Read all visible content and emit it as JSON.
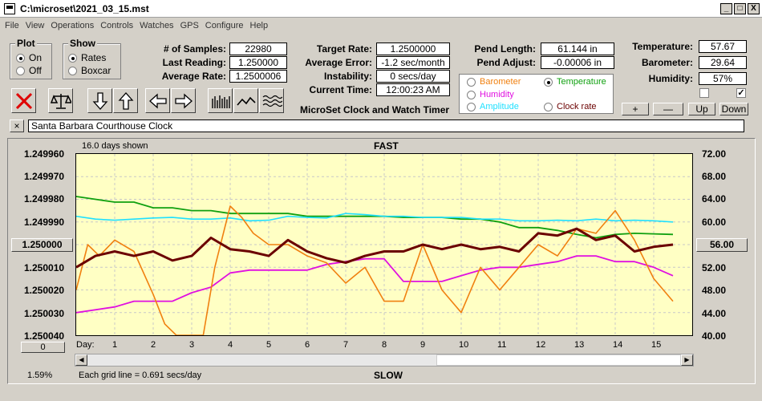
{
  "window": {
    "title": "C:\\microset\\2021_03_15.mst",
    "controls": [
      "_",
      "□",
      "X"
    ]
  },
  "menu": [
    "File",
    "View",
    "Operations",
    "Controls",
    "Watches",
    "GPS",
    "Configure",
    "Help"
  ],
  "plot_group": {
    "legend": "Plot",
    "on": "On",
    "off": "Off",
    "selected": "On"
  },
  "show_group": {
    "legend": "Show",
    "rates": "Rates",
    "boxcar": "Boxcar",
    "selected": "Rates"
  },
  "stats": {
    "samples_label": "# of Samples:",
    "samples": "22980",
    "last_label": "Last Reading:",
    "last": "1.250000",
    "avg_label": "Average Rate:",
    "avg": "1.2500006",
    "target_label": "Target Rate:",
    "target": "1.2500000",
    "err_label": "Average Error:",
    "err": "-1.2 sec/month",
    "inst_label": "Instability:",
    "inst": "0 secs/day",
    "time_label": "Current Time:",
    "time": "12:00:23 AM",
    "pendlen_label": "Pend Length:",
    "pendlen": "61.144 in",
    "pendadj_label": "Pend Adjust:",
    "pendadj": "-0.00006 in",
    "temp_label": "Temperature:",
    "temp": "57.67",
    "baro_label": "Barometer:",
    "baro": "29.64",
    "hum_label": "Humidity:",
    "hum": "57%"
  },
  "subtitle": "MicroSet Clock and Watch Timer",
  "sensor_radios": {
    "barometer": "Barometer",
    "temperature": "Temperature",
    "humidity": "Humidity",
    "amplitude": "Amplitude",
    "clockrate": "Clock rate",
    "selected": "Temperature"
  },
  "axis_buttons": {
    "plus": "+",
    "minus": "—",
    "up": "Up",
    "down": "Down"
  },
  "checks": {
    "left": false,
    "right": true,
    "mark": "✓"
  },
  "name_field": {
    "close": "×",
    "value": "Santa Barbara Courthouse Clock"
  },
  "graph": {
    "days_shown": "16.0 days shown",
    "fast": "FAST",
    "slow": "SLOW",
    "left_ticks": [
      "1.249960",
      "1.249970",
      "1.249980",
      "1.249990",
      "1.250000",
      "1.250010",
      "1.250020",
      "1.250030",
      "1.250040"
    ],
    "right_ticks": [
      "72.00",
      "68.00",
      "64.00",
      "60.00",
      "56.00",
      "52.00",
      "48.00",
      "44.00",
      "40.00"
    ],
    "center_left_button": "1.250000",
    "center_right_button": "56.00",
    "zero_button": "0",
    "day_label": "Day:",
    "days": [
      "1",
      "2",
      "3",
      "4",
      "5",
      "6",
      "7",
      "8",
      "9",
      "10",
      "11",
      "12",
      "13",
      "14",
      "15"
    ],
    "grid_note": "Each grid line = 0.691 secs/day",
    "percent": "1.59%"
  },
  "chart_data": {
    "type": "line",
    "xlabel": "Day",
    "xlim": [
      0,
      16
    ],
    "ylim_left": [
      1.24996,
      1.25004
    ],
    "ylim_right": [
      40,
      72
    ],
    "colors": {
      "rate": "#6b0000",
      "barometer": "#f08010",
      "temperature": "#10a010",
      "humidity": "#e010e0",
      "amplitude": "#20e0ff"
    },
    "series": [
      {
        "name": "Temperature",
        "axis": "right",
        "x": [
          0,
          0.5,
          1,
          1.5,
          2,
          2.5,
          3,
          3.5,
          4,
          4.5,
          5,
          5.5,
          6,
          6.5,
          7,
          7.5,
          8,
          8.5,
          9,
          9.5,
          10,
          10.5,
          11,
          11.5,
          12,
          12.5,
          13,
          13.5,
          14,
          14.5,
          15,
          15.5
        ],
        "values": [
          64.5,
          64,
          63.5,
          63.5,
          62.5,
          62.5,
          62,
          62,
          61.5,
          61.5,
          61.5,
          61.5,
          61,
          61,
          61,
          61,
          61,
          60.8,
          60.8,
          60.8,
          60.5,
          60.5,
          60,
          59,
          59,
          58.5,
          57.8,
          57.2,
          57.8,
          58,
          57.9,
          57.8
        ]
      },
      {
        "name": "Amplitude",
        "axis": "right",
        "x": [
          0,
          0.5,
          1,
          1.5,
          2,
          2.5,
          3,
          3.5,
          4,
          4.5,
          5,
          5.5,
          6,
          6.5,
          7,
          7.5,
          8,
          8.5,
          9,
          9.5,
          10,
          10.5,
          11,
          11.5,
          12,
          12.5,
          13,
          13.5,
          14,
          14.5,
          15,
          15.5
        ],
        "values": [
          61,
          60.5,
          60.3,
          60.5,
          60.7,
          60.8,
          60.5,
          60.5,
          60.7,
          60.2,
          60.3,
          61,
          60.8,
          60.7,
          61.5,
          61.3,
          61,
          61,
          60.8,
          60.8,
          60.8,
          60.5,
          60.5,
          60.2,
          60.2,
          60.3,
          60.2,
          60.5,
          60.2,
          60.3,
          60.2,
          60
        ]
      },
      {
        "name": "Humidity",
        "axis": "right",
        "x": [
          0,
          1,
          1.5,
          2,
          2.5,
          3,
          3.5,
          4,
          4.5,
          5,
          5.5,
          6,
          6.5,
          7,
          7.5,
          8,
          8.5,
          9,
          9.5,
          10,
          10.5,
          11,
          11.5,
          12,
          12.5,
          13,
          13.5,
          14,
          14.5,
          15,
          15.5
        ],
        "values": [
          44,
          45,
          46,
          46,
          46,
          47.5,
          48.5,
          51,
          51.5,
          51.5,
          51.5,
          51.5,
          52.5,
          53,
          53.5,
          53.5,
          49.5,
          49.5,
          49.5,
          50.5,
          51.5,
          52,
          52,
          52.5,
          53,
          54,
          54,
          53,
          53,
          52,
          50.5
        ]
      },
      {
        "name": "Barometer",
        "axis": "left",
        "x": [
          0,
          0.3,
          0.6,
          1,
          1.5,
          2,
          2.3,
          2.6,
          3,
          3.3,
          3.6,
          4,
          4.3,
          4.6,
          5,
          5.5,
          6,
          6.5,
          7,
          7.5,
          8,
          8.5,
          9,
          9.5,
          10,
          10.5,
          11,
          11.5,
          12,
          12.5,
          13,
          13.5,
          14,
          14.5,
          15,
          15.5
        ],
        "values": [
          1.25002,
          1.25,
          1.250005,
          1.249998,
          1.250003,
          1.250022,
          1.250035,
          1.25004,
          1.25004,
          1.25004,
          1.25001,
          1.249983,
          1.249988,
          1.249995,
          1.25,
          1.25,
          1.250005,
          1.250008,
          1.250017,
          1.25001,
          1.250025,
          1.250025,
          1.25,
          1.25002,
          1.25003,
          1.25001,
          1.25002,
          1.25001,
          1.25,
          1.250005,
          1.249993,
          1.249995,
          1.249985,
          1.249998,
          1.250015,
          1.250025
        ]
      },
      {
        "name": "Clock rate",
        "axis": "left",
        "x": [
          0,
          0.5,
          1,
          1.5,
          2,
          2.5,
          3,
          3.5,
          4,
          4.5,
          5,
          5.5,
          6,
          6.5,
          7,
          7.5,
          8,
          8.5,
          9,
          9.5,
          10,
          10.5,
          11,
          11.5,
          12,
          12.5,
          13,
          13.5,
          14,
          14.5,
          15,
          15.5
        ],
        "values": [
          1.25001,
          1.250005,
          1.250003,
          1.250005,
          1.250003,
          1.250007,
          1.250005,
          1.249997,
          1.250002,
          1.250003,
          1.250005,
          1.249998,
          1.250003,
          1.250006,
          1.250008,
          1.250005,
          1.250003,
          1.250003,
          1.25,
          1.250002,
          1.25,
          1.250002,
          1.250001,
          1.250003,
          1.249995,
          1.249996,
          1.249993,
          1.249998,
          1.249996,
          1.250003,
          1.250001,
          1.25
        ]
      }
    ]
  }
}
